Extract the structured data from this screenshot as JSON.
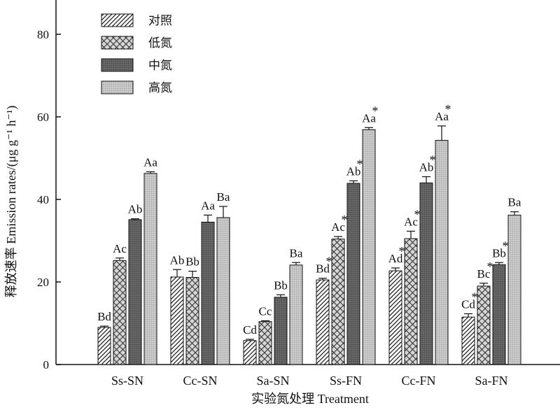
{
  "chart_data": {
    "type": "bar",
    "xlabel": "实验氮处理 Treatment",
    "ylabel": "释放速率 Emission rates/(μg g⁻¹ h⁻¹)",
    "ylim": [
      0,
      80
    ],
    "yticks": [
      "0",
      "20",
      "40",
      "60",
      "80"
    ],
    "categories": [
      "Ss-SN",
      "Cc-SN",
      "Sa-SN",
      "Ss-FN",
      "Cc-FN",
      "Sa-FN"
    ],
    "legend_position": "top-left",
    "series": [
      {
        "name": "对照",
        "pattern": "diagonal-hatch",
        "values": [
          9.0,
          21.2,
          5.8,
          20.5,
          22.7,
          11.5
        ],
        "errors": [
          0.3,
          1.8,
          0.3,
          0.4,
          0.7,
          0.8
        ],
        "labels": [
          "Bd",
          "Ab",
          "Cd",
          "Bd",
          "Ad",
          "Cd"
        ],
        "stars": [
          false,
          false,
          false,
          true,
          true,
          true
        ]
      },
      {
        "name": "低氮",
        "pattern": "crosshatch",
        "values": [
          25.2,
          21.1,
          10.4,
          30.4,
          30.5,
          19.0
        ],
        "errors": [
          0.6,
          1.5,
          0.2,
          0.6,
          1.8,
          0.7
        ],
        "labels": [
          "Ac",
          "Bb",
          "Cc",
          "Ac",
          "Ac",
          "Bc"
        ],
        "stars": [
          false,
          false,
          false,
          true,
          true,
          true
        ]
      },
      {
        "name": "中氮",
        "pattern": "dark-grid",
        "values": [
          35.1,
          34.5,
          16.3,
          43.9,
          44.0,
          24.2
        ],
        "errors": [
          0.2,
          1.7,
          0.6,
          0.6,
          1.5,
          0.5
        ],
        "labels": [
          "Ab",
          "Aa",
          "Bb",
          "Ab",
          "Ab",
          "Bb"
        ],
        "stars": [
          false,
          false,
          false,
          true,
          true,
          true
        ]
      },
      {
        "name": "高氮",
        "pattern": "light-grid",
        "values": [
          46.3,
          35.6,
          24.1,
          56.9,
          54.3,
          36.2
        ],
        "errors": [
          0.4,
          2.7,
          0.6,
          0.5,
          3.5,
          0.8
        ],
        "labels": [
          "Aa",
          "Ba",
          "Ba",
          "Aa",
          "Aa",
          "Ba"
        ],
        "stars": [
          false,
          false,
          false,
          true,
          true,
          false
        ]
      }
    ]
  }
}
